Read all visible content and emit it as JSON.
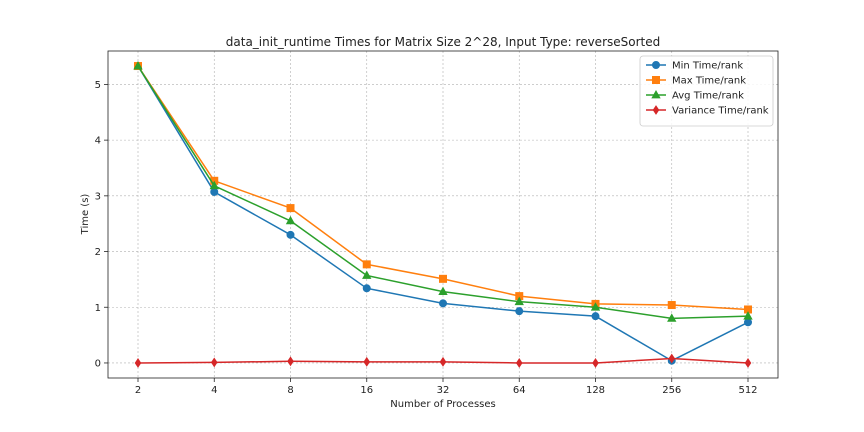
{
  "chart_data": {
    "type": "line",
    "title": "data_init_runtime Times for Matrix Size 2^28, Input Type: reverseSorted",
    "xlabel": "Number of Processes",
    "ylabel": "Time (s)",
    "categories": [
      "2",
      "4",
      "8",
      "16",
      "32",
      "64",
      "128",
      "256",
      "512"
    ],
    "yticks": [
      "0",
      "1",
      "2",
      "3",
      "4",
      "5"
    ],
    "ylim": [
      -0.27,
      5.6
    ],
    "grid": true,
    "legend_position": "top-right",
    "series": [
      {
        "name": "Min Time/rank",
        "color": "#1f77b4",
        "marker": "circle",
        "values": [
          5.33,
          3.07,
          2.3,
          1.34,
          1.07,
          0.93,
          0.84,
          0.04,
          0.73
        ]
      },
      {
        "name": "Max Time/rank",
        "color": "#ff7f0e",
        "marker": "square",
        "values": [
          5.33,
          3.27,
          2.78,
          1.77,
          1.51,
          1.2,
          1.06,
          1.04,
          0.96
        ]
      },
      {
        "name": "Avg Time/rank",
        "color": "#2ca02c",
        "marker": "triangle",
        "values": [
          5.33,
          3.18,
          2.55,
          1.57,
          1.28,
          1.1,
          1.0,
          0.8,
          0.84
        ]
      },
      {
        "name": "Variance Time/rank",
        "color": "#d62728",
        "marker": "diamond",
        "values": [
          0.0,
          0.01,
          0.03,
          0.02,
          0.02,
          0.0,
          0.0,
          0.08,
          0.0
        ]
      }
    ]
  }
}
